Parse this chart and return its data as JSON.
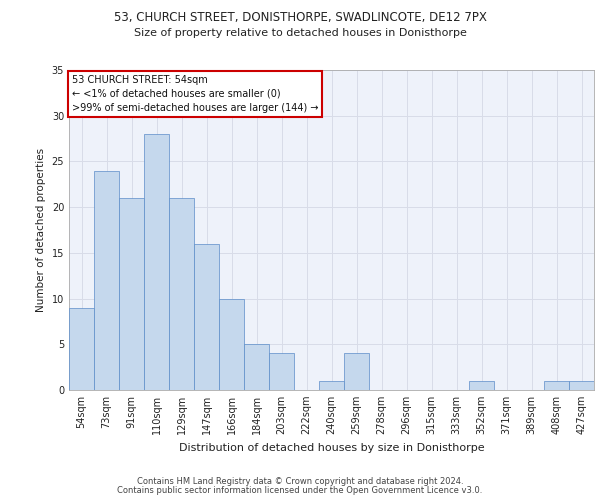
{
  "title_line1": "53, CHURCH STREET, DONISTHORPE, SWADLINCOTE, DE12 7PX",
  "title_line2": "Size of property relative to detached houses in Donisthorpe",
  "xlabel": "Distribution of detached houses by size in Donisthorpe",
  "ylabel": "Number of detached properties",
  "categories": [
    "54sqm",
    "73sqm",
    "91sqm",
    "110sqm",
    "129sqm",
    "147sqm",
    "166sqm",
    "184sqm",
    "203sqm",
    "222sqm",
    "240sqm",
    "259sqm",
    "278sqm",
    "296sqm",
    "315sqm",
    "333sqm",
    "352sqm",
    "371sqm",
    "389sqm",
    "408sqm",
    "427sqm"
  ],
  "values": [
    9,
    24,
    21,
    28,
    21,
    16,
    10,
    5,
    4,
    0,
    1,
    4,
    0,
    0,
    0,
    0,
    1,
    0,
    0,
    1,
    1
  ],
  "bar_color": "#c5d8ed",
  "bar_edge_color": "#5b8cc8",
  "grid_color": "#d8dce8",
  "background_color": "#eef2fa",
  "annotation_text": "53 CHURCH STREET: 54sqm\n← <1% of detached houses are smaller (0)\n>99% of semi-detached houses are larger (144) →",
  "annotation_box_color": "#ffffff",
  "annotation_border_color": "#cc0000",
  "ylim": [
    0,
    35
  ],
  "yticks": [
    0,
    5,
    10,
    15,
    20,
    25,
    30,
    35
  ],
  "title1_fontsize": 8.5,
  "title2_fontsize": 8.0,
  "xlabel_fontsize": 8.0,
  "ylabel_fontsize": 7.5,
  "tick_fontsize": 7.0,
  "annot_fontsize": 7.0,
  "footer_fontsize": 6.0,
  "footer_line1": "Contains HM Land Registry data © Crown copyright and database right 2024.",
  "footer_line2": "Contains public sector information licensed under the Open Government Licence v3.0."
}
